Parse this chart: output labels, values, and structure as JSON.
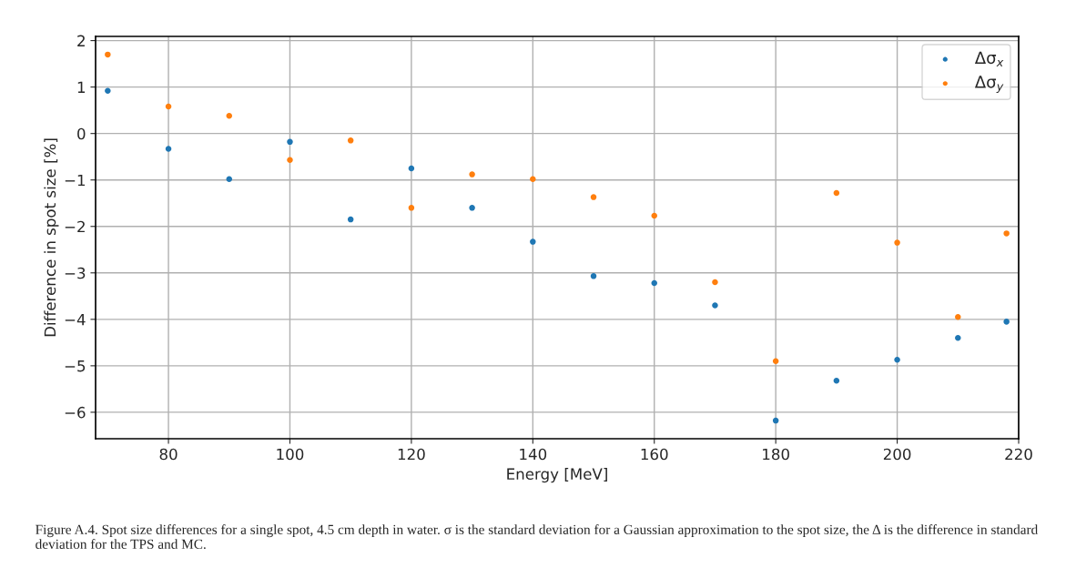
{
  "chart_data": {
    "type": "scatter",
    "x": [
      70,
      80,
      90,
      100,
      110,
      120,
      130,
      140,
      150,
      160,
      170,
      180,
      190,
      200,
      210,
      218
    ],
    "series": [
      {
        "name": "Δσ$_{x}$",
        "color": "#1f77b4",
        "values": [
          0.92,
          -0.33,
          -0.98,
          -0.18,
          -1.85,
          -0.75,
          -1.6,
          -2.33,
          -3.07,
          -3.22,
          -3.7,
          -6.18,
          -5.32,
          -4.87,
          -4.4,
          -4.05
        ]
      },
      {
        "name": "Δσ$_{y}$",
        "color": "#ff7f0e",
        "values": [
          1.7,
          0.58,
          0.38,
          -0.57,
          -0.15,
          -1.6,
          -0.88,
          -0.98,
          -1.37,
          -1.77,
          -3.2,
          -4.9,
          -1.28,
          -2.35,
          -3.95,
          -2.15
        ]
      }
    ],
    "xlabel": "Energy [MeV]",
    "ylabel": "Difference in spot size [%]",
    "xlim": [
      68,
      220
    ],
    "xticks": [
      80,
      100,
      120,
      140,
      160,
      180,
      200,
      220
    ],
    "ylim": [
      -6.57,
      2.09
    ],
    "yticks": [
      -6,
      -5,
      -4,
      -3,
      -2,
      -1,
      0,
      1,
      2
    ],
    "grid": true,
    "legend": "top right",
    "marker": "circle",
    "annotations": [
      "Figure A.4. Spot size differences for a single spot, 4.5 cm depth in water. σ is the standard deviation for a Gaussian approximation to the spot size, the Δ is the difference in standard deviation for the TPS and MC."
    ]
  }
}
